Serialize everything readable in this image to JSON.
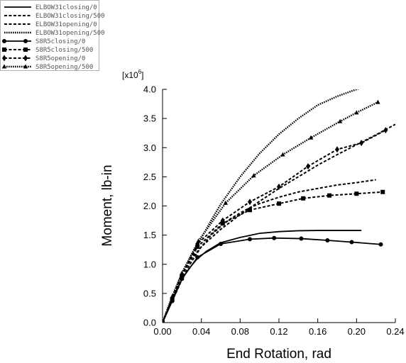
{
  "chart_data": {
    "type": "line",
    "xlabel": "End Rotation, rad",
    "ylabel": "Moment, lb-in",
    "y_multiplier_base": "[x10",
    "y_multiplier_exp": "6",
    "y_multiplier_close": "]",
    "xlim": [
      0,
      0.24
    ],
    "ylim": [
      0,
      4.0
    ],
    "x_ticks": [
      "0.00",
      "0.04",
      "0.08",
      "0.12",
      "0.16",
      "0.20",
      "0.24"
    ],
    "y_ticks": [
      "0.0",
      "0.5",
      "1.0",
      "1.5",
      "2.0",
      "2.5",
      "3.0",
      "3.5",
      "4.0"
    ],
    "grid": false,
    "legend_position": "top-left",
    "series": [
      {
        "name": "ELBOW31closing/0",
        "dash": "solid",
        "marker": "none",
        "x": [
          0,
          0.005,
          0.01,
          0.015,
          0.02,
          0.025,
          0.03,
          0.035,
          0.045,
          0.06,
          0.08,
          0.1,
          0.12,
          0.14,
          0.16,
          0.18,
          0.205
        ],
        "y": [
          0,
          0.2,
          0.4,
          0.58,
          0.74,
          0.87,
          0.98,
          1.08,
          1.22,
          1.37,
          1.46,
          1.53,
          1.56,
          1.575,
          1.58,
          1.58,
          1.58
        ]
      },
      {
        "name": "ELBOW31closing/500",
        "dash": "dashed",
        "marker": "none",
        "x": [
          0,
          0.005,
          0.01,
          0.015,
          0.02,
          0.025,
          0.03,
          0.04,
          0.05,
          0.06,
          0.07,
          0.08,
          0.09,
          0.1,
          0.12,
          0.14,
          0.16,
          0.18,
          0.2,
          0.22
        ],
        "y": [
          0,
          0.2,
          0.38,
          0.55,
          0.74,
          0.9,
          1.05,
          1.3,
          1.5,
          1.65,
          1.78,
          1.88,
          1.97,
          2.04,
          2.15,
          2.24,
          2.3,
          2.36,
          2.4,
          2.45
        ]
      },
      {
        "name": "ELBOW31opening/0",
        "dash": "dashed",
        "marker": "none",
        "x": [
          0,
          0.01,
          0.02,
          0.03,
          0.04,
          0.06,
          0.08,
          0.1,
          0.12,
          0.14,
          0.16,
          0.18,
          0.2,
          0.22,
          0.24
        ],
        "y": [
          0,
          0.43,
          0.83,
          1.1,
          1.3,
          1.6,
          1.85,
          2.08,
          2.3,
          2.5,
          2.7,
          2.88,
          3.05,
          3.22,
          3.4
        ]
      },
      {
        "name": "ELBOW31opening/500",
        "dash": "dotted",
        "marker": "none",
        "x": [
          0,
          0.01,
          0.02,
          0.03,
          0.04,
          0.05,
          0.06,
          0.08,
          0.1,
          0.12,
          0.14,
          0.16,
          0.18,
          0.2,
          0.21
        ],
        "y": [
          0,
          0.45,
          0.85,
          1.17,
          1.45,
          1.75,
          2.03,
          2.5,
          2.9,
          3.23,
          3.5,
          3.73,
          3.88,
          4.0,
          4.05
        ]
      },
      {
        "name": "S8R5closing/0",
        "dash": "solid",
        "marker": "circle",
        "x": [
          0,
          0.01,
          0.02,
          0.036,
          0.06,
          0.09,
          0.115,
          0.143,
          0.17,
          0.195,
          0.225
        ],
        "y": [
          0,
          0.37,
          0.75,
          1.12,
          1.35,
          1.43,
          1.45,
          1.44,
          1.41,
          1.38,
          1.34
        ]
      },
      {
        "name": "S8R5closing/500",
        "dash": "dashed",
        "marker": "square",
        "x": [
          0,
          0.01,
          0.02,
          0.036,
          0.062,
          0.09,
          0.12,
          0.145,
          0.172,
          0.2,
          0.227
        ],
        "y": [
          0,
          0.4,
          0.8,
          1.3,
          1.7,
          1.93,
          2.04,
          2.13,
          2.18,
          2.21,
          2.24
        ]
      },
      {
        "name": "S8R5opening/0",
        "dash": "dashed",
        "marker": "diamond",
        "x": [
          0,
          0.01,
          0.02,
          0.036,
          0.062,
          0.09,
          0.12,
          0.15,
          0.18,
          0.205,
          0.23
        ],
        "y": [
          0,
          0.42,
          0.82,
          1.35,
          1.75,
          2.07,
          2.33,
          2.68,
          2.97,
          3.08,
          3.3
        ]
      },
      {
        "name": "S8R5opening/500",
        "dash": "dotted",
        "marker": "triangle",
        "x": [
          0,
          0.01,
          0.02,
          0.037,
          0.065,
          0.094,
          0.124,
          0.153,
          0.183,
          0.2,
          0.222
        ],
        "y": [
          0,
          0.45,
          0.85,
          1.4,
          2.05,
          2.52,
          2.88,
          3.17,
          3.45,
          3.6,
          3.78
        ]
      }
    ]
  }
}
